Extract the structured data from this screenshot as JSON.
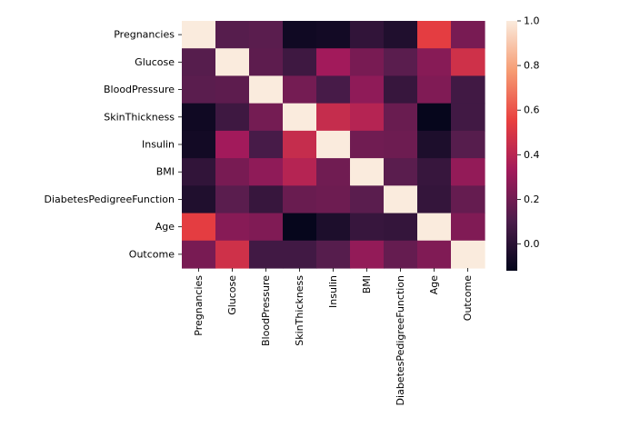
{
  "chart_data": {
    "type": "heatmap",
    "variables": [
      "Pregnancies",
      "Glucose",
      "BloodPressure",
      "SkinThickness",
      "Insulin",
      "BMI",
      "DiabetesPedigreeFunction",
      "Age",
      "Outcome"
    ],
    "matrix": [
      [
        1.0,
        0.13,
        0.14,
        -0.08,
        -0.07,
        0.02,
        -0.03,
        0.54,
        0.22
      ],
      [
        0.13,
        1.0,
        0.15,
        0.06,
        0.33,
        0.22,
        0.14,
        0.26,
        0.47
      ],
      [
        0.14,
        0.15,
        1.0,
        0.21,
        0.09,
        0.28,
        0.04,
        0.24,
        0.07
      ],
      [
        -0.08,
        0.06,
        0.21,
        1.0,
        0.44,
        0.39,
        0.18,
        -0.11,
        0.07
      ],
      [
        -0.07,
        0.33,
        0.09,
        0.44,
        1.0,
        0.2,
        0.19,
        -0.04,
        0.13
      ],
      [
        0.02,
        0.22,
        0.28,
        0.39,
        0.2,
        1.0,
        0.14,
        0.04,
        0.29
      ],
      [
        -0.03,
        0.14,
        0.04,
        0.18,
        0.19,
        0.14,
        1.0,
        0.03,
        0.17
      ],
      [
        0.54,
        0.26,
        0.24,
        -0.11,
        -0.04,
        0.04,
        0.03,
        1.0,
        0.24
      ],
      [
        0.22,
        0.47,
        0.07,
        0.07,
        0.13,
        0.29,
        0.17,
        0.24,
        1.0
      ]
    ],
    "colorbar": {
      "vmin": -0.12,
      "vmax": 1.0,
      "ticks": [
        "0.0",
        "0.2",
        "0.4",
        "0.6",
        "0.8",
        "1.0"
      ],
      "colormap": "rocket",
      "color_stops": [
        "#03051a",
        "#4c1d4b",
        "#a11a5b",
        "#e83f3f",
        "#f69c73",
        "#faebdd"
      ]
    },
    "title": "",
    "xlabel": "",
    "ylabel": "",
    "grid": false,
    "legend": "colorbar-right"
  }
}
